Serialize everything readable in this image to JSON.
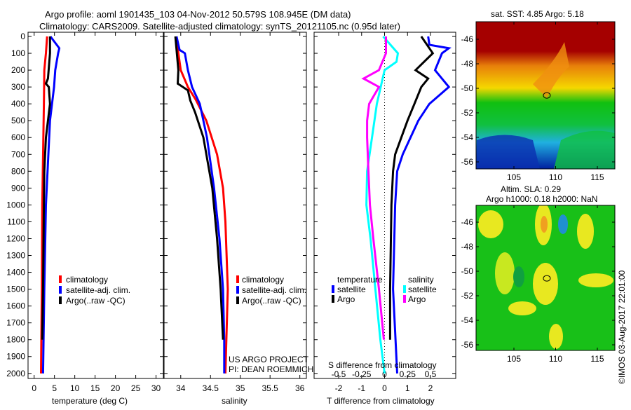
{
  "title": {
    "line1": "Argo profile: aoml 1901435_103 04-Nov-2012 50.579S 108.945E (DM data)",
    "line2": "Climatology: CARS2009. Satellite-adjusted climatology: synTS_20121105.nc (0.95d later)"
  },
  "colors": {
    "climatology": "#ff0000",
    "satellite": "#0000ff",
    "argo": "#000000",
    "sal_satellite": "#00ffff",
    "sal_argo": "#ff00ff"
  },
  "chart_data": [
    {
      "type": "line",
      "xlabel": "temperature (deg C)",
      "xlim": [
        -1.5,
        31.8
      ],
      "ylim": [
        2030,
        -25
      ],
      "xticks": [
        "0",
        "5",
        "10",
        "15",
        "20",
        "25",
        "30"
      ],
      "xtick_values": [
        0,
        5,
        10,
        15,
        20,
        25,
        30
      ],
      "yticks": [
        "0",
        "100",
        "200",
        "300",
        "400",
        "500",
        "600",
        "700",
        "800",
        "900",
        "1000",
        "1100",
        "1200",
        "1300",
        "1400",
        "1500",
        "1600",
        "1700",
        "1800",
        "1900",
        "2000"
      ],
      "legend": [
        "climatology",
        "satellite-adj. clim.",
        "Argo(..raw -QC)"
      ],
      "series": [
        {
          "name": "climatology",
          "color": "#ff0000",
          "depth": [
            0,
            100,
            200,
            400,
            1000,
            1500,
            2000
          ],
          "values": [
            3.2,
            2.9,
            2.5,
            2.4,
            2.0,
            1.9,
            1.7
          ]
        },
        {
          "name": "satellite-adj. clim.",
          "color": "#0000ff",
          "depth": [
            0,
            70,
            100,
            200,
            300,
            500,
            1000,
            1500,
            2000
          ],
          "values": [
            4.0,
            6.2,
            5.9,
            5.2,
            4.9,
            3.9,
            2.9,
            2.5,
            2.2
          ]
        },
        {
          "name": "Argo(..raw -QC)",
          "color": "#000000",
          "depth": [
            0,
            100,
            250,
            280,
            300,
            400,
            500,
            600,
            800,
            1000,
            1500,
            1800
          ],
          "values": [
            3.9,
            3.9,
            3.4,
            2.9,
            3.6,
            3.9,
            3.4,
            2.9,
            2.5,
            2.4,
            2.2,
            2.0
          ]
        }
      ]
    },
    {
      "type": "line",
      "xlabel": "salinity",
      "xlim": [
        33.72,
        36.11
      ],
      "ylim": [
        2030,
        -25
      ],
      "xticks": [
        "34",
        "34.5",
        "35",
        "35.5",
        "36"
      ],
      "xtick_values": [
        34,
        34.5,
        35,
        35.5,
        36
      ],
      "legend": [
        "climatology",
        "satellite-adj. clim.",
        "Argo(..raw -QC)"
      ],
      "annotation": [
        "US ARGO PROJECT",
        "PI: DEAN ROEMMICH"
      ],
      "series": [
        {
          "name": "climatology",
          "color": "#ff0000",
          "depth": [
            0,
            100,
            200,
            300,
            380,
            500,
            700,
            900,
            1100,
            1500,
            2000
          ],
          "values": [
            33.93,
            33.96,
            34.0,
            34.12,
            34.26,
            34.43,
            34.61,
            34.71,
            34.75,
            34.79,
            34.75
          ]
        },
        {
          "name": "satellite-adj. clim.",
          "color": "#0000ff",
          "depth": [
            0,
            80,
            100,
            200,
            300,
            400,
            600,
            900,
            1200,
            1500,
            1800,
            2000
          ],
          "values": [
            33.93,
            33.98,
            34.07,
            34.12,
            34.19,
            34.32,
            34.44,
            34.56,
            34.65,
            34.71,
            34.73,
            34.73
          ]
        },
        {
          "name": "Argo(..raw -QC)",
          "color": "#000000",
          "depth": [
            0,
            200,
            280,
            320,
            380,
            450,
            600,
            900,
            1200,
            1500,
            1800
          ],
          "values": [
            33.91,
            33.96,
            33.95,
            34.12,
            34.16,
            34.24,
            34.38,
            34.53,
            34.61,
            34.67,
            34.71
          ]
        }
      ]
    },
    {
      "type": "line",
      "xlabel": "T difference from climatology",
      "xlabel2": "S difference from climatology",
      "xlim": [
        -3.07,
        3.1
      ],
      "xticks": [
        "-2",
        "-1",
        "0",
        "1",
        "2"
      ],
      "xtick_values": [
        -2,
        -1,
        0,
        1,
        2
      ],
      "s_xticks": [
        "-0.5",
        "-0.25",
        "0",
        "0.25",
        "0.5"
      ],
      "s_xtick_values": [
        -0.5,
        -0.25,
        0,
        0.25,
        0.5
      ],
      "legend": {
        "temperature_title": "temperature",
        "salinity_title": "salinity",
        "t_satellite": "satellite",
        "t_argo": "Argo",
        "s_satellite": "satellite",
        "s_argo": "Argo"
      },
      "t_series": [
        {
          "name": "satellite",
          "color": "#0000ff",
          "depth": [
            0,
            50,
            70,
            100,
            200,
            300,
            400,
            500,
            600,
            700,
            800,
            1000,
            1500,
            2000
          ],
          "values": [
            1.9,
            1.95,
            2.8,
            2.5,
            2.2,
            2.8,
            1.95,
            1.47,
            1.13,
            0.79,
            0.55,
            0.46,
            0.37,
            0.55
          ]
        },
        {
          "name": "Argo",
          "color": "#000000",
          "depth": [
            0,
            100,
            200,
            250,
            300,
            400,
            500,
            600,
            700,
            800,
            1000,
            1500,
            1800
          ],
          "values": [
            1.6,
            2.1,
            1.35,
            1.9,
            1.6,
            1.3,
            1.0,
            0.73,
            0.46,
            0.37,
            0.3,
            0.24,
            0.24
          ]
        }
      ],
      "s_series": [
        {
          "name": "satellite",
          "color": "#00ffff",
          "depth": [
            0,
            100,
            150,
            200,
            400,
            600,
            800,
            1000,
            1200,
            1500,
            1800,
            2000
          ],
          "values": [
            -0.015,
            0.145,
            0.13,
            0.0,
            -0.084,
            -0.137,
            -0.19,
            -0.198,
            -0.153,
            -0.1,
            -0.046,
            0.0
          ]
        },
        {
          "name": "Argo",
          "color": "#ff00ff",
          "depth": [
            0,
            100,
            200,
            250,
            300,
            400,
            500,
            600,
            800,
            1000,
            1200,
            1500,
            1800
          ],
          "values": [
            0.015,
            0.015,
            -0.061,
            -0.229,
            -0.061,
            -0.168,
            -0.19,
            -0.19,
            -0.176,
            -0.16,
            -0.122,
            -0.061,
            -0.008
          ]
        }
      ]
    },
    {
      "type": "heatmap",
      "title": "sat. SST: 4.85 Argo: 5.18",
      "xticks": [
        "105",
        "110",
        "115"
      ],
      "yticks": [
        "-46",
        "-48",
        "-50",
        "-52",
        "-54",
        "-56"
      ],
      "marker": {
        "lon": 108.945,
        "lat": -50.579
      }
    },
    {
      "type": "heatmap",
      "title": "Altim. SLA: 0.29",
      "subtitle": "Argo h1000: 0.18 h2000: NaN",
      "xticks": [
        "105",
        "110",
        "115"
      ],
      "yticks": [
        "-46",
        "-48",
        "-50",
        "-52",
        "-54",
        "-56"
      ],
      "marker": {
        "lon": 108.945,
        "lat": -50.579
      }
    }
  ],
  "credit": "©IMOS 03-Aug-2017 22:01:00"
}
